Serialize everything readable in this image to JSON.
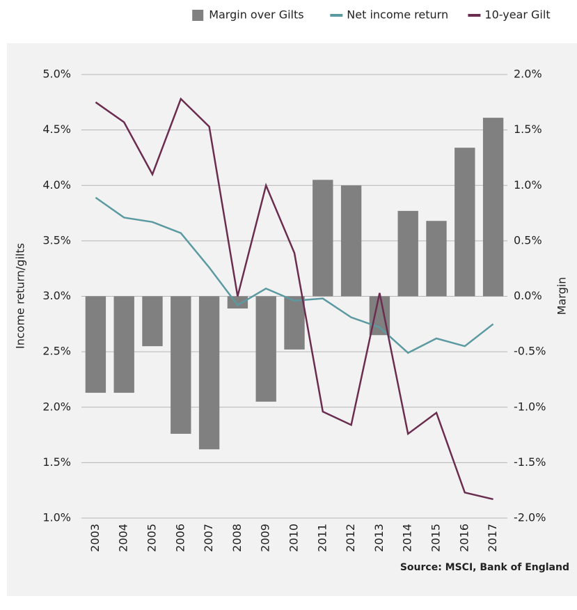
{
  "chart_data": {
    "type": "bar",
    "categories": [
      "2003",
      "2004",
      "2005",
      "2006",
      "2007",
      "2008",
      "2009",
      "2010",
      "2011",
      "2012",
      "2013",
      "2014",
      "2015",
      "2016",
      "2017"
    ],
    "series": [
      {
        "name": "Margin over Gilts",
        "type": "bar",
        "axis": "y2",
        "color": "#808080",
        "values": [
          -0.87,
          -0.87,
          -0.45,
          -1.24,
          -1.38,
          -0.11,
          -0.95,
          -0.48,
          1.05,
          1.0,
          -0.35,
          0.77,
          0.68,
          1.34,
          1.61
        ]
      },
      {
        "name": "Net income return",
        "type": "line",
        "color": "#5b9aa0",
        "values": [
          3.89,
          3.71,
          3.67,
          3.57,
          3.26,
          2.92,
          3.07,
          2.96,
          2.98,
          2.81,
          2.72,
          2.49,
          2.62,
          2.55,
          2.75
        ]
      },
      {
        "name": "10-year Gilt",
        "type": "line",
        "color": "#6b2d4f",
        "values": [
          4.75,
          4.57,
          4.1,
          4.78,
          4.53,
          3.0,
          4.0,
          3.39,
          1.96,
          1.84,
          3.03,
          1.76,
          1.95,
          1.23,
          1.17
        ]
      }
    ],
    "ylabel": "Income return/gilts",
    "y2label": "Margin",
    "ylim": [
      1.0,
      5.0
    ],
    "yticks": [
      {
        "value": 1.0,
        "label": "1.0%"
      },
      {
        "value": 1.5,
        "label": "1.5%"
      },
      {
        "value": 2.0,
        "label": "2.0%"
      },
      {
        "value": 2.5,
        "label": "2.5%"
      },
      {
        "value": 3.0,
        "label": "3.0%"
      },
      {
        "value": 3.5,
        "label": "3.5%"
      },
      {
        "value": 4.0,
        "label": "4.0%"
      },
      {
        "value": 4.5,
        "label": "4.5%"
      },
      {
        "value": 5.0,
        "label": "5.0%"
      }
    ],
    "y2lim": [
      -2.0,
      2.0
    ],
    "y2ticks": [
      {
        "value": -2.0,
        "label": "-2.0%"
      },
      {
        "value": -1.5,
        "label": "-1.5%"
      },
      {
        "value": -1.0,
        "label": "-1.0%"
      },
      {
        "value": -0.5,
        "label": "-0.5%"
      },
      {
        "value": 0.0,
        "label": "0.0%"
      },
      {
        "value": 0.5,
        "label": "0.5%"
      },
      {
        "value": 1.0,
        "label": "1.0%"
      },
      {
        "value": 1.5,
        "label": "1.5%"
      },
      {
        "value": 2.0,
        "label": "2.0%"
      }
    ],
    "grid": true,
    "legend": "top",
    "source": "Source: MSCI, Bank of England"
  }
}
